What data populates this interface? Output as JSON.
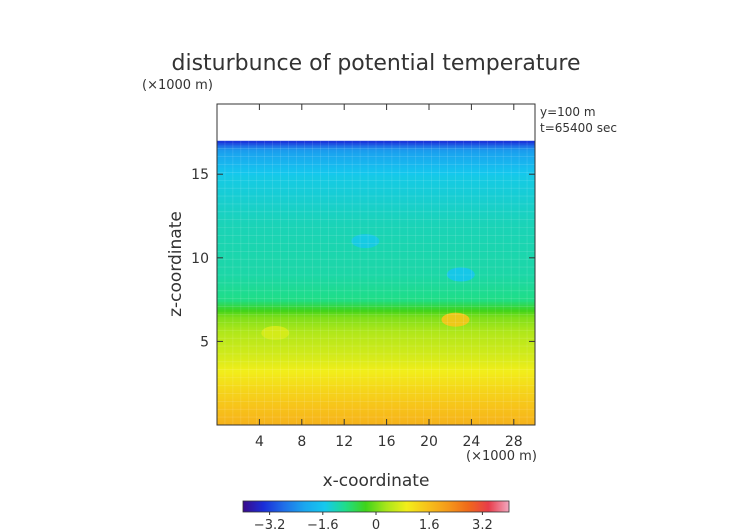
{
  "chart_data": {
    "type": "heatmap",
    "title": "disturbunce of potential temperature",
    "xlabel": "x-coordinate",
    "ylabel": "z-coordinate",
    "x_unit": "(×1000 m)",
    "z_unit": "(×1000 m)",
    "annotations": [
      "y=100 m",
      "t=65400 sec"
    ],
    "xlim": [
      0,
      30
    ],
    "ylim": [
      0,
      19.2
    ],
    "x_ticks": [
      4,
      8,
      12,
      16,
      20,
      24,
      28
    ],
    "y_ticks": [
      5,
      10,
      15
    ],
    "colorbar": {
      "range": [
        -4,
        4
      ],
      "ticks": [
        -3.2,
        -1.6,
        0,
        1.6,
        3.2
      ],
      "tick_labels": [
        "−3.2",
        "−1.6",
        "0",
        "1.6",
        "3.2"
      ],
      "colors": [
        "#3a0a8a",
        "#1a2ed8",
        "#1f6fe8",
        "#1aa6ef",
        "#15c8ee",
        "#1fdd8a",
        "#3fd31a",
        "#a8e61a",
        "#f2ee1a",
        "#f7c21a",
        "#f59a1a",
        "#f06a1a",
        "#e83c4a",
        "#f2a8c0"
      ]
    },
    "data_top_z": 17.0,
    "profile": [
      {
        "z": 0.0,
        "value": 1.8
      },
      {
        "z": 2.0,
        "value": 1.3
      },
      {
        "z": 4.0,
        "value": 0.7
      },
      {
        "z": 5.5,
        "value": 0.4
      },
      {
        "z": 6.5,
        "value": 0.05
      },
      {
        "z": 7.5,
        "value": -0.9
      },
      {
        "z": 9.0,
        "value": -1.1
      },
      {
        "z": 12.0,
        "value": -1.2
      },
      {
        "z": 15.0,
        "value": -1.5
      },
      {
        "z": 16.5,
        "value": -2.3
      },
      {
        "z": 17.0,
        "value": -3.4
      }
    ],
    "features": [
      {
        "x": 22.5,
        "z": 6.3,
        "value": 1.5
      },
      {
        "x": 5.5,
        "z": 5.5,
        "value": 0.7
      },
      {
        "x": 14.0,
        "z": 11.0,
        "value": -1.5
      },
      {
        "x": 23.0,
        "z": 9.0,
        "value": -1.6
      }
    ]
  }
}
